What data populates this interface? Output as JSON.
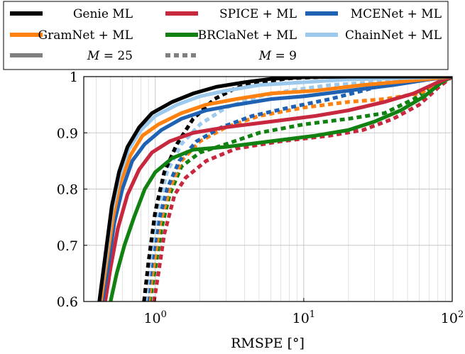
{
  "chart_data": {
    "type": "line",
    "title": "",
    "xlabel": "RMSPE [°]",
    "ylabel": "",
    "xscale": "log",
    "xlim": [
      0.33,
      100
    ],
    "ylim": [
      0.6,
      1.0
    ],
    "x_ticks": [
      {
        "value": 1,
        "base": "10",
        "exp": "0"
      },
      {
        "value": 10,
        "base": "10",
        "exp": "1"
      },
      {
        "value": 100,
        "base": "10",
        "exp": "2"
      }
    ],
    "y_ticks": [
      {
        "value": 0.6,
        "label": "0.6"
      },
      {
        "value": 0.7,
        "label": "0.7"
      },
      {
        "value": 0.8,
        "label": "0.8"
      },
      {
        "value": 0.9,
        "label": "0.9"
      },
      {
        "value": 1.0,
        "label": "1"
      }
    ],
    "grid": true,
    "legend_position": "top",
    "legend": [
      {
        "label": "Genie ML",
        "color": "#000000",
        "style": "solid"
      },
      {
        "label": "SPICE + ML",
        "color": "#c8283e",
        "style": "solid"
      },
      {
        "label": "MCENet + ML",
        "color": "#1f62b4",
        "style": "solid"
      },
      {
        "label": "GramNet + ML",
        "color": "#ff8210",
        "style": "solid"
      },
      {
        "label": "BRClaNet + ML",
        "color": "#118211",
        "style": "solid"
      },
      {
        "label": "ChainNet + ML",
        "color": "#9cc9ec",
        "style": "solid"
      },
      {
        "label": "M = 25",
        "color": "#808080",
        "style": "solid",
        "math": true,
        "var": "M",
        "rest": " = 25"
      },
      {
        "label": "M = 9",
        "color": "#808080",
        "style": "dashed",
        "math": true,
        "var": "M",
        "rest": " = 9"
      }
    ],
    "series": [
      {
        "method": "SPICE + ML",
        "m": "M = 9",
        "color": "#c8283e",
        "style": "dashed",
        "points": [
          [
            0.98,
            0.6
          ],
          [
            1.05,
            0.65
          ],
          [
            1.15,
            0.72
          ],
          [
            1.35,
            0.79
          ],
          [
            1.6,
            0.82
          ],
          [
            2.2,
            0.85
          ],
          [
            3.5,
            0.872
          ],
          [
            7,
            0.885
          ],
          [
            15,
            0.895
          ],
          [
            25,
            0.905
          ],
          [
            40,
            0.925
          ],
          [
            60,
            0.95
          ],
          [
            80,
            0.98
          ],
          [
            100,
            1.0
          ]
        ]
      },
      {
        "method": "BRClaNet + ML",
        "m": "M = 9",
        "color": "#118211",
        "style": "dashed",
        "points": [
          [
            0.92,
            0.6
          ],
          [
            1.0,
            0.66
          ],
          [
            1.1,
            0.73
          ],
          [
            1.25,
            0.79
          ],
          [
            1.5,
            0.84
          ],
          [
            2.0,
            0.865
          ],
          [
            3.0,
            0.88
          ],
          [
            5,
            0.9
          ],
          [
            10,
            0.915
          ],
          [
            20,
            0.925
          ],
          [
            35,
            0.935
          ],
          [
            55,
            0.96
          ],
          [
            80,
            0.99
          ],
          [
            100,
            1.0
          ]
        ]
      },
      {
        "method": "GramNet + ML",
        "m": "M = 9",
        "color": "#ff8210",
        "style": "dashed",
        "points": [
          [
            0.9,
            0.6
          ],
          [
            0.97,
            0.66
          ],
          [
            1.08,
            0.74
          ],
          [
            1.25,
            0.8
          ],
          [
            1.5,
            0.85
          ],
          [
            2.0,
            0.885
          ],
          [
            3.0,
            0.91
          ],
          [
            5,
            0.93
          ],
          [
            10,
            0.945
          ],
          [
            20,
            0.955
          ],
          [
            35,
            0.96
          ],
          [
            60,
            0.97
          ],
          [
            85,
            0.99
          ],
          [
            100,
            1.0
          ]
        ]
      },
      {
        "method": "MCENet + ML",
        "m": "M = 9",
        "color": "#1f62b4",
        "style": "dashed",
        "points": [
          [
            0.88,
            0.6
          ],
          [
            0.95,
            0.67
          ],
          [
            1.05,
            0.74
          ],
          [
            1.2,
            0.8
          ],
          [
            1.45,
            0.85
          ],
          [
            1.9,
            0.885
          ],
          [
            2.8,
            0.91
          ],
          [
            4.5,
            0.93
          ],
          [
            8,
            0.945
          ],
          [
            15,
            0.96
          ],
          [
            25,
            0.975
          ],
          [
            40,
            0.99
          ],
          [
            60,
            0.995
          ],
          [
            100,
            1.0
          ]
        ]
      },
      {
        "method": "ChainNet + ML",
        "m": "M = 9",
        "color": "#9cc9ec",
        "style": "dashed",
        "points": [
          [
            0.86,
            0.6
          ],
          [
            0.93,
            0.68
          ],
          [
            1.03,
            0.76
          ],
          [
            1.2,
            0.83
          ],
          [
            1.5,
            0.88
          ],
          [
            2.0,
            0.915
          ],
          [
            3.0,
            0.945
          ],
          [
            5,
            0.965
          ],
          [
            8,
            0.975
          ],
          [
            15,
            0.985
          ],
          [
            30,
            0.99
          ],
          [
            60,
            0.995
          ],
          [
            100,
            1.0
          ]
        ]
      },
      {
        "method": "Genie ML",
        "m": "M = 9",
        "color": "#000000",
        "style": "dashed",
        "points": [
          [
            0.84,
            0.6
          ],
          [
            0.9,
            0.67
          ],
          [
            1.0,
            0.76
          ],
          [
            1.15,
            0.83
          ],
          [
            1.4,
            0.88
          ],
          [
            1.8,
            0.925
          ],
          [
            2.5,
            0.96
          ],
          [
            3.5,
            0.98
          ],
          [
            5,
            0.99
          ],
          [
            8,
            0.997
          ],
          [
            15,
            1.0
          ],
          [
            100,
            1.0
          ]
        ]
      },
      {
        "method": "BRClaNet + ML",
        "m": "M = 25",
        "color": "#118211",
        "style": "solid",
        "points": [
          [
            0.5,
            0.6
          ],
          [
            0.55,
            0.65
          ],
          [
            0.62,
            0.7
          ],
          [
            0.72,
            0.75
          ],
          [
            0.85,
            0.8
          ],
          [
            1.0,
            0.83
          ],
          [
            1.3,
            0.855
          ],
          [
            1.8,
            0.87
          ],
          [
            3,
            0.875
          ],
          [
            6,
            0.885
          ],
          [
            12,
            0.895
          ],
          [
            20,
            0.905
          ],
          [
            30,
            0.92
          ],
          [
            45,
            0.94
          ],
          [
            65,
            0.965
          ],
          [
            85,
            0.99
          ],
          [
            100,
            1.0
          ]
        ]
      },
      {
        "method": "SPICE + ML",
        "m": "M = 25",
        "color": "#c8283e",
        "style": "solid",
        "points": [
          [
            0.46,
            0.6
          ],
          [
            0.5,
            0.66
          ],
          [
            0.56,
            0.73
          ],
          [
            0.65,
            0.79
          ],
          [
            0.78,
            0.835
          ],
          [
            0.95,
            0.865
          ],
          [
            1.25,
            0.885
          ],
          [
            1.8,
            0.9
          ],
          [
            3,
            0.91
          ],
          [
            6,
            0.92
          ],
          [
            12,
            0.93
          ],
          [
            20,
            0.94
          ],
          [
            35,
            0.955
          ],
          [
            55,
            0.97
          ],
          [
            80,
            0.99
          ],
          [
            100,
            1.0
          ]
        ]
      },
      {
        "method": "MCENet + ML",
        "m": "M = 25",
        "color": "#1f62b4",
        "style": "solid",
        "points": [
          [
            0.44,
            0.6
          ],
          [
            0.48,
            0.66
          ],
          [
            0.53,
            0.74
          ],
          [
            0.6,
            0.8
          ],
          [
            0.7,
            0.85
          ],
          [
            0.85,
            0.88
          ],
          [
            1.1,
            0.905
          ],
          [
            1.5,
            0.925
          ],
          [
            2.2,
            0.94
          ],
          [
            3.5,
            0.95
          ],
          [
            6,
            0.96
          ],
          [
            10,
            0.965
          ],
          [
            20,
            0.975
          ],
          [
            40,
            0.985
          ],
          [
            70,
            0.995
          ],
          [
            100,
            1.0
          ]
        ]
      },
      {
        "method": "GramNet + ML",
        "m": "M = 25",
        "color": "#ff8210",
        "style": "solid",
        "points": [
          [
            0.43,
            0.6
          ],
          [
            0.47,
            0.67
          ],
          [
            0.52,
            0.75
          ],
          [
            0.58,
            0.81
          ],
          [
            0.68,
            0.86
          ],
          [
            0.82,
            0.895
          ],
          [
            1.05,
            0.915
          ],
          [
            1.5,
            0.935
          ],
          [
            2.2,
            0.95
          ],
          [
            3.5,
            0.96
          ],
          [
            6,
            0.97
          ],
          [
            12,
            0.975
          ],
          [
            25,
            0.985
          ],
          [
            50,
            0.992
          ],
          [
            100,
            1.0
          ]
        ]
      },
      {
        "method": "ChainNet + ML",
        "m": "M = 25",
        "color": "#9cc9ec",
        "style": "solid",
        "points": [
          [
            0.42,
            0.6
          ],
          [
            0.46,
            0.67
          ],
          [
            0.51,
            0.76
          ],
          [
            0.57,
            0.82
          ],
          [
            0.66,
            0.87
          ],
          [
            0.8,
            0.905
          ],
          [
            1.0,
            0.93
          ],
          [
            1.4,
            0.95
          ],
          [
            2.0,
            0.965
          ],
          [
            3.0,
            0.975
          ],
          [
            5,
            0.985
          ],
          [
            10,
            0.99
          ],
          [
            20,
            0.995
          ],
          [
            100,
            1.0
          ]
        ]
      },
      {
        "method": "Genie ML",
        "m": "M = 25",
        "color": "#000000",
        "style": "solid",
        "points": [
          [
            0.42,
            0.6
          ],
          [
            0.46,
            0.68
          ],
          [
            0.51,
            0.77
          ],
          [
            0.57,
            0.83
          ],
          [
            0.65,
            0.875
          ],
          [
            0.78,
            0.91
          ],
          [
            0.95,
            0.935
          ],
          [
            1.3,
            0.955
          ],
          [
            1.8,
            0.97
          ],
          [
            2.6,
            0.982
          ],
          [
            4,
            0.99
          ],
          [
            6,
            0.996
          ],
          [
            10,
            0.999
          ],
          [
            20,
            1.0
          ],
          [
            100,
            1.0
          ]
        ]
      }
    ]
  }
}
